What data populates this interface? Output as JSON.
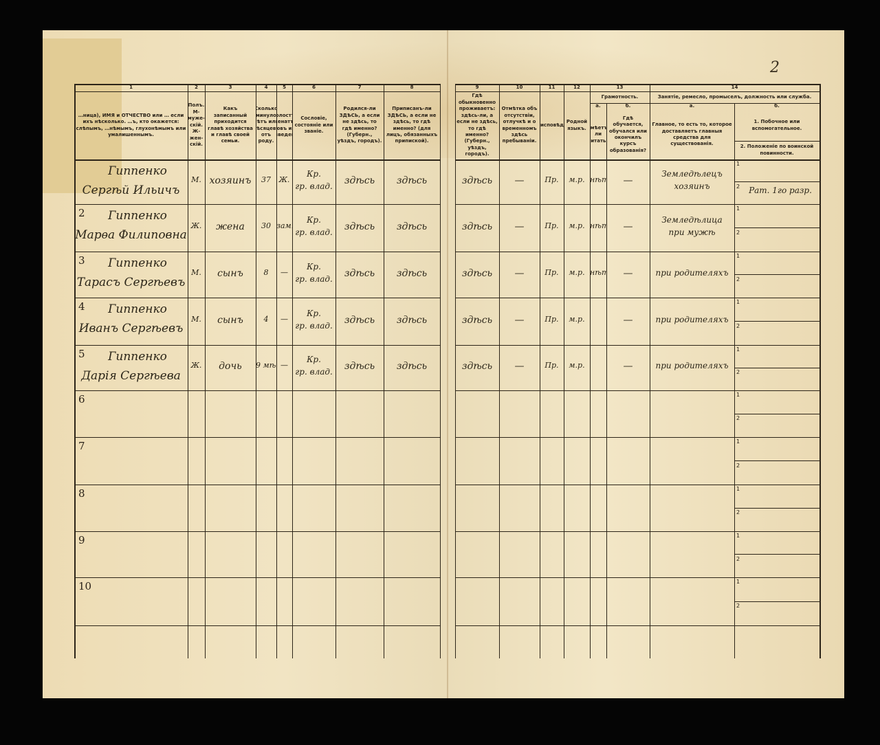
{
  "page_number": "2",
  "columns": [
    {
      "number": "1",
      "header": "…ница), ИМЯ и ОТЧЕСТВО или … если ихъ нѣсколько. …ъ, кто окажется: слѣпымъ, …нѣмымъ, глухонѣмымъ или умалишеннымъ."
    },
    {
      "number": "2",
      "header": "Полъ. М-муже-скій. Ж-жен-скій."
    },
    {
      "number": "3",
      "header": "Какъ записанный приходится главѣ хозяйства и главѣ своей семьи."
    },
    {
      "number": "4",
      "header": "Сколько минуло лѣтъ или мѣсяцевъ отъ роду."
    },
    {
      "number": "5",
      "header": "Холостъ, женатъ, вдовъ или разведенъ."
    },
    {
      "number": "6",
      "header": "Сословіе, состояніе или званіе."
    },
    {
      "number": "7",
      "header": "Родился-ли ЗДѢСЬ, а если не здѣсь, то гдѣ именно? (Губерн., уѣздъ, городъ)."
    },
    {
      "number": "8",
      "header": "Приписанъ-ли ЗДѢСЬ, а если не здѣсь, то гдѣ именно? (для лицъ, обязанныхъ припиской)."
    },
    {
      "number": "9",
      "header": "Гдѣ обыкновенно проживаетъ: здѣсь-ли, а если не здѣсь, то гдѣ именно? (Губерн., уѣздъ, городъ)."
    },
    {
      "number": "10",
      "header": "Отмѣтка объ отсутствіи, отлучкѣ и о временномъ здѣсь пребываніи."
    },
    {
      "number": "11",
      "header": "Вѣроисповѣданіе."
    },
    {
      "number": "12",
      "header": "Родной языкъ."
    },
    {
      "number": "13",
      "header": "Грамотность.",
      "sub": [
        {
          "letter": "а.",
          "header": "Умѣетъ-ли читать?"
        },
        {
          "letter": "б.",
          "header": "Гдѣ обучается, обучался или окончилъ курсъ образованія?"
        }
      ]
    },
    {
      "number": "14",
      "header": "Занятіе, ремесло, промыселъ, должность или служба.",
      "sub": [
        {
          "letter": "а.",
          "header": "Главное, то есть то, которое доставляетъ главныя средства для существованія."
        },
        {
          "letter": "б.",
          "header": [
            "1. Побочное или вспомогательное.",
            "2. Положеніе по воинской повинности."
          ]
        }
      ]
    }
  ],
  "sub_labels": [
    "1",
    "2"
  ],
  "rows": [
    {
      "surname": "Гиппенко",
      "given": "Сергѣй Ильичъ",
      "sex": "М.",
      "relation": "хозяинъ",
      "age": "37",
      "marital": "Ж.",
      "estate": [
        "Кр.",
        "гр. влад."
      ],
      "born": "здѣсь",
      "registered": "здѣсь",
      "residence": "здѣсь",
      "absence": "—",
      "religion": "Пр.",
      "language": "м.р.",
      "literacy": "нѣт",
      "education": "—",
      "occupation": [
        "Земледѣлецъ",
        "хозяинъ"
      ],
      "military": "Рат. 1го разр."
    },
    {
      "number": "2",
      "surname": "Гиппенко",
      "given": "Марѳа Филиповна",
      "sex": "Ж.",
      "relation": "жена",
      "age": "30",
      "marital": "зам.",
      "estate": [
        "Кр.",
        "гр. влад."
      ],
      "born": "здѣсь",
      "registered": "здѣсь",
      "residence": "здѣсь",
      "absence": "—",
      "religion": "Пр.",
      "language": "м.р.",
      "literacy": "нѣт",
      "education": "—",
      "occupation": [
        "Земледѣлица",
        "при мужѣ"
      ]
    },
    {
      "number": "3",
      "surname": "Гиппенко",
      "given": "Тарасъ Сергѣевъ",
      "sex": "М.",
      "relation": "сынъ",
      "age": "8",
      "marital": "—",
      "estate": [
        "Кр.",
        "гр. влад."
      ],
      "born": "здѣсь",
      "registered": "здѣсь",
      "residence": "здѣсь",
      "absence": "—",
      "religion": "Пр.",
      "language": "м.р.",
      "literacy": "нѣт",
      "education": "—",
      "occupation": [
        "при родителяхъ"
      ]
    },
    {
      "number": "4",
      "surname": "Гиппенко",
      "given": "Иванъ Сергѣевъ",
      "sex": "М.",
      "relation": "сынъ",
      "age": "4",
      "marital": "—",
      "estate": [
        "Кр.",
        "гр. влад."
      ],
      "born": "здѣсь",
      "registered": "здѣсь",
      "residence": "здѣсь",
      "absence": "—",
      "religion": "Пр.",
      "language": "м.р.",
      "education": "—",
      "occupation": [
        "при родителяхъ"
      ]
    },
    {
      "number": "5",
      "surname": "Гиппенко",
      "given": "Дарія Сергѣева",
      "sex": "Ж.",
      "relation": "дочь",
      "age": "9 мѣс.",
      "marital": "—",
      "estate": [
        "Кр.",
        "гр. влад."
      ],
      "born": "здѣсь",
      "registered": "здѣсь",
      "residence": "здѣсь",
      "absence": "—",
      "religion": "Пр.",
      "language": "м.р.",
      "education": "—",
      "occupation": [
        "при родителяхъ"
      ]
    },
    {
      "number": "6"
    },
    {
      "number": "7"
    },
    {
      "number": "8"
    },
    {
      "number": "9"
    },
    {
      "number": "10"
    }
  ]
}
